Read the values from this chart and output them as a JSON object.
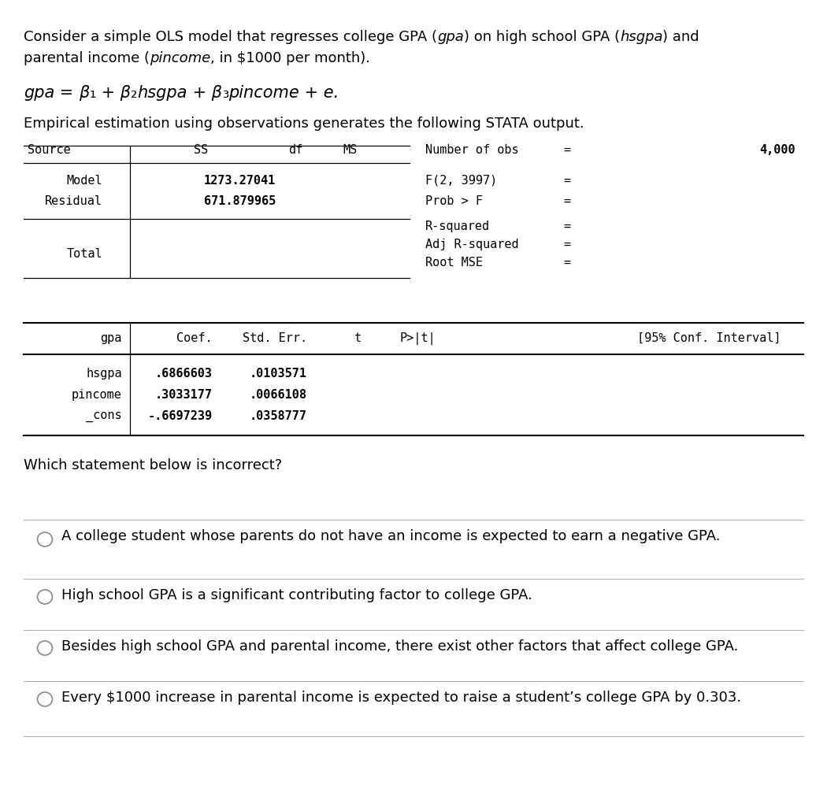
{
  "bg_color": "#ffffff",
  "text_color": "#000000",
  "empirical_line": "Empirical estimation using observations generates the following STATA output.",
  "question": "Which statement below is incorrect?",
  "options": [
    "A college student whose parents do not have an income is expected to earn a negative GPA.",
    "High school GPA is a significant contributing factor to college GPA.",
    "Besides high school GPA and parental income, there exist other factors that affect college GPA.",
    "Every $1000 increase in parental income is expected to raise a student’s college GPA by 0.303."
  ],
  "mono_font": "DejaVu Sans Mono",
  "sans_font": "DejaVu Sans",
  "body_fontsize": 13,
  "table_fontsize": 11,
  "eq_fontsize": 15
}
